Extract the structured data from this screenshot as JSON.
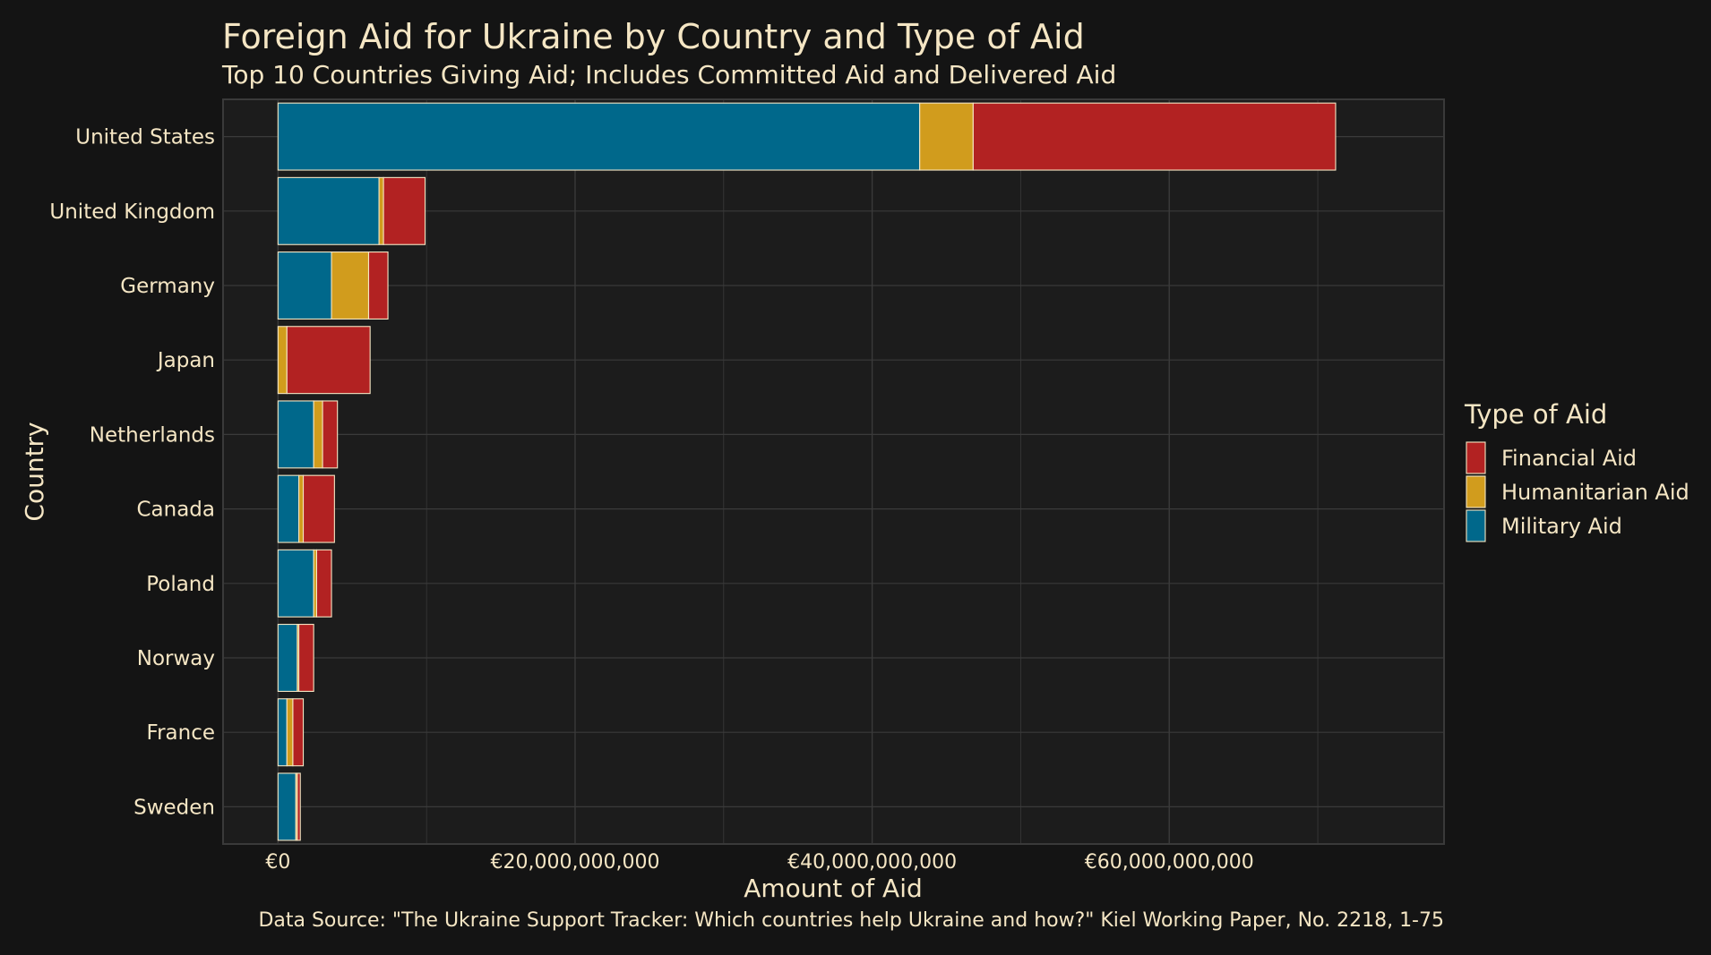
{
  "chart_data": {
    "type": "bar",
    "orientation": "horizontal",
    "stacked": true,
    "title": "Foreign Aid for Ukraine by Country and Type of Aid",
    "subtitle": "Top 10 Countries Giving Aid; Includes Committed Aid and Delivered Aid",
    "xlabel": "Amount of Aid",
    "ylabel": "Country",
    "caption": "Data Source: \"The Ukraine Support Tracker: Which countries help Ukraine and how?\" Kiel Working Paper, No. 2218, 1-75",
    "xlim": [
      -3700000000,
      78500000000
    ],
    "x_ticks": [
      0,
      20000000000,
      40000000000,
      60000000000
    ],
    "x_tick_labels": [
      "€0",
      "€20,000,000,000",
      "€40,000,000,000",
      "€60,000,000,000"
    ],
    "grid": true,
    "legend_title": "Type of Aid",
    "legend_position": "right",
    "categories": [
      "United States",
      "United Kingdom",
      "Germany",
      "Japan",
      "Netherlands",
      "Canada",
      "Poland",
      "Norway",
      "France",
      "Sweden"
    ],
    "series": [
      {
        "name": "Military Aid",
        "color": "#00688b",
        "values": [
          43200000000,
          6800000000,
          3600000000,
          0,
          2400000000,
          1400000000,
          2400000000,
          1300000000,
          600000000,
          1200000000
        ]
      },
      {
        "name": "Humanitarian Aid",
        "color": "#d19c1d",
        "values": [
          3600000000,
          300000000,
          2500000000,
          600000000,
          600000000,
          300000000,
          200000000,
          100000000,
          400000000,
          100000000
        ]
      },
      {
        "name": "Financial Aid",
        "color": "#b22222",
        "values": [
          24400000000,
          2800000000,
          1300000000,
          5600000000,
          1000000000,
          2100000000,
          1000000000,
          1000000000,
          700000000,
          200000000
        ]
      }
    ],
    "legend_order": [
      "Financial Aid",
      "Humanitarian Aid",
      "Military Aid"
    ]
  },
  "colors": {
    "background": "#141414",
    "panel": "#1c1c1c",
    "grid": "#3a3a3a",
    "text": "#f5e6c4",
    "bar_outline": "#f5e6c4"
  }
}
